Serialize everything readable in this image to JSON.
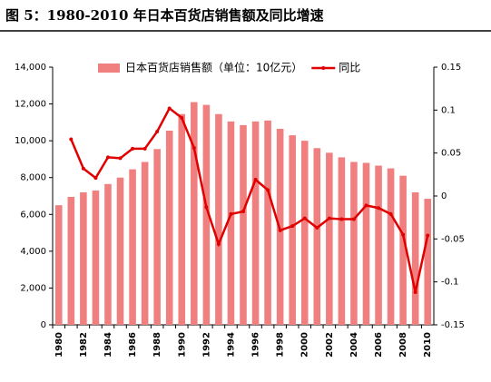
{
  "chart_data": {
    "type": "bar-line",
    "title": "图 5：1980-2010 年日本百货店销售额及同比增速",
    "categories": [
      "1980",
      null,
      "1982",
      null,
      "1984",
      null,
      "1986",
      null,
      "1988",
      null,
      "1990",
      null,
      "1992",
      null,
      "1994",
      null,
      "1996",
      null,
      "1998",
      null,
      "2000",
      null,
      "2002",
      null,
      "2004",
      null,
      "2006",
      null,
      "2008",
      null,
      "2010"
    ],
    "series": [
      {
        "name": "日本百货店销售额（单位：10亿元）",
        "type": "bar",
        "color": "#f08080",
        "values": [
          6500,
          6950,
          7200,
          7300,
          7650,
          8000,
          8450,
          8850,
          9550,
          10550,
          11450,
          12100,
          11950,
          11450,
          11050,
          10850,
          11050,
          11100,
          10650,
          10300,
          10000,
          9600,
          9350,
          9100,
          8850,
          8800,
          8650,
          8500,
          8100,
          7200,
          6850
        ]
      },
      {
        "name": "同比",
        "type": "line",
        "axis": "y2",
        "color": "#e00000",
        "values": [
          null,
          0.066,
          0.032,
          0.021,
          0.045,
          0.044,
          0.055,
          0.055,
          0.075,
          0.102,
          0.091,
          0.056,
          -0.013,
          -0.056,
          -0.021,
          -0.018,
          0.019,
          0.007,
          -0.04,
          -0.035,
          -0.026,
          -0.037,
          -0.026,
          -0.027,
          -0.027,
          -0.011,
          -0.014,
          -0.021,
          -0.045,
          -0.112,
          -0.046
        ]
      }
    ],
    "ylim": [
      0,
      14000
    ],
    "yticks": [
      0,
      {
        "value": 2000,
        "label": "2,000"
      },
      {
        "value": 4000,
        "label": "4,000"
      },
      {
        "value": 6000,
        "label": "6,000"
      },
      {
        "value": 8000,
        "label": "8,000"
      },
      {
        "value": 10000,
        "label": "10,000"
      },
      {
        "value": 12000,
        "label": "12,000"
      },
      {
        "value": 14000,
        "label": "14,000"
      }
    ],
    "y2lim": [
      -0.15,
      0.15
    ],
    "y2ticks": [
      -0.15,
      -0.1,
      -0.05,
      0,
      0.05,
      0.1,
      0.15
    ]
  }
}
